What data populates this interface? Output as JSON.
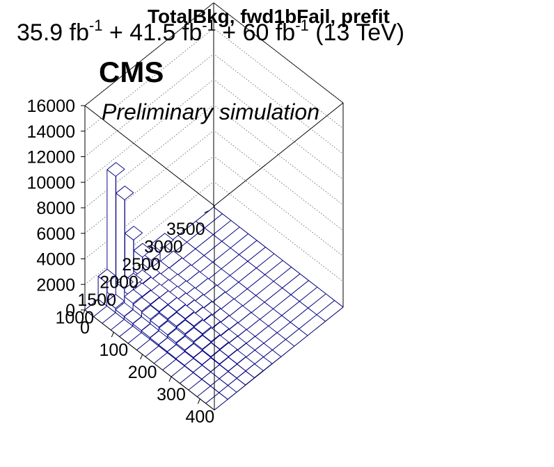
{
  "header": {
    "title": "TotalBkg, fwd1bFail, prefit",
    "lumi_a": "35.9 fb",
    "lumi_b": " + 41.5 fb",
    "lumi_c": " + 60 fb",
    "lumi_sup": "-1",
    "lumi_energy": " (13 TeV)"
  },
  "labels": {
    "cms": "CMS",
    "extra": "Preliminary simulation"
  },
  "chart_data": {
    "type": "lego",
    "title": "TotalBkg, fwd1bFail, prefit",
    "xlabel": "",
    "ylabel": "",
    "zlabel": "",
    "x_ticks": [
      0,
      100,
      200,
      300,
      400
    ],
    "y_ticks": [
      1000,
      1500,
      2000,
      2500,
      3000,
      3500
    ],
    "z_ticks": [
      0,
      2000,
      4000,
      6000,
      8000,
      10000,
      12000,
      14000,
      16000
    ],
    "xlim": [
      0,
      450
    ],
    "ylim": [
      700,
      3600
    ],
    "zlim": [
      0,
      16000
    ],
    "x_edges": [
      0,
      30,
      60,
      90,
      120,
      150,
      180,
      210,
      240,
      270,
      300,
      330,
      360,
      390,
      420,
      450
    ],
    "y_edges": [
      700,
      1000,
      1200,
      1400,
      1600,
      1800,
      2000,
      2200,
      2500,
      2800,
      3200,
      3600
    ],
    "values": [
      [
        0,
        0,
        0,
        0,
        0,
        0,
        0,
        0,
        0,
        0,
        0,
        0,
        0,
        0,
        0
      ],
      [
        1800,
        350,
        230,
        200,
        170,
        140,
        110,
        90,
        70,
        50,
        40,
        30,
        20,
        15,
        10
      ],
      [
        9600,
        1300,
        700,
        600,
        500,
        400,
        320,
        240,
        170,
        120,
        80,
        50,
        30,
        20,
        10
      ],
      [
        7200,
        900,
        650,
        600,
        550,
        500,
        440,
        370,
        290,
        210,
        150,
        100,
        60,
        40,
        20
      ],
      [
        3500,
        600,
        550,
        550,
        540,
        520,
        480,
        420,
        340,
        250,
        180,
        120,
        80,
        50,
        30
      ],
      [
        1600,
        350,
        330,
        340,
        340,
        330,
        300,
        260,
        200,
        150,
        100,
        70,
        40,
        30,
        20
      ],
      [
        800,
        200,
        200,
        210,
        210,
        200,
        180,
        150,
        120,
        90,
        60,
        40,
        30,
        20,
        10
      ],
      [
        1000,
        140,
        120,
        110,
        100,
        90,
        80,
        60,
        50,
        40,
        30,
        20,
        15,
        10,
        5
      ],
      [
        0,
        0,
        0,
        0,
        0,
        0,
        0,
        0,
        0,
        0,
        0,
        0,
        0,
        0,
        0
      ],
      [
        0,
        0,
        0,
        0,
        0,
        0,
        0,
        0,
        0,
        0,
        0,
        0,
        0,
        0,
        0
      ],
      [
        0,
        0,
        0,
        0,
        0,
        0,
        0,
        0,
        0,
        0,
        0,
        0,
        0,
        0,
        0
      ]
    ],
    "colors": {
      "edge": "#000080",
      "face": "#ffffff",
      "frame": "#000000",
      "grid": "#555555"
    }
  }
}
